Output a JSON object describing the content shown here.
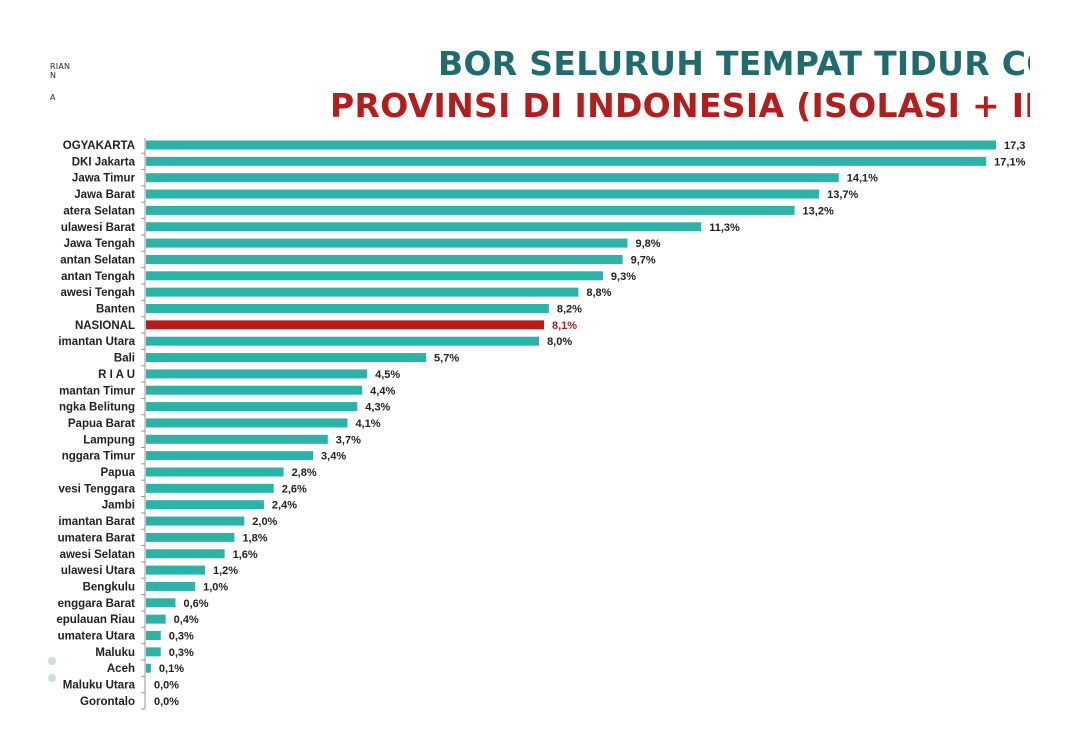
{
  "logo": {
    "line1": "RIAN",
    "line2": "N",
    "line3": "A"
  },
  "header": {
    "title_line1": "BOR SELURUH TEMPAT TIDUR COV",
    "title_line2": "PROVINSI DI INDONESIA (ISOLASI + INT"
  },
  "colors": {
    "bar": "#2bb3a8",
    "highlight_bar": "#b51d1d",
    "title1": "#1f6b6d",
    "title2": "#b51d1d"
  },
  "chart_data": {
    "type": "bar",
    "orientation": "horizontal",
    "categories": [
      "OGYAKARTA",
      "DKI Jakarta",
      "Jawa Timur",
      "Jawa Barat",
      "atera Selatan",
      "ulawesi Barat",
      "Jawa Tengah",
      "antan Selatan",
      "antan Tengah",
      "awesi Tengah",
      "Banten",
      "NASIONAL",
      "imantan Utara",
      "Bali",
      "R I A U",
      "mantan Timur",
      "ngka Belitung",
      "Papua Barat",
      "Lampung",
      "nggara Timur",
      "Papua",
      "vesi Tenggara",
      "Jambi",
      "imantan Barat",
      "umatera Barat",
      "awesi Selatan",
      "ulawesi Utara",
      "Bengkulu",
      "enggara Barat",
      "epulauan Riau",
      "umatera Utara",
      "Maluku",
      "Aceh",
      "Maluku Utara",
      "Gorontalo"
    ],
    "values": [
      17.3,
      17.1,
      14.1,
      13.7,
      13.2,
      11.3,
      9.8,
      9.7,
      9.3,
      8.8,
      8.2,
      8.1,
      8.0,
      5.7,
      4.5,
      4.4,
      4.3,
      4.1,
      3.7,
      3.4,
      2.8,
      2.6,
      2.4,
      2.0,
      1.8,
      1.6,
      1.2,
      1.0,
      0.6,
      0.4,
      0.3,
      0.3,
      0.1,
      0.0,
      0.0
    ],
    "value_labels": [
      "17,3",
      "17,1%",
      "14,1%",
      "13,7%",
      "13,2%",
      "11,3%",
      "9,8%",
      "9,7%",
      "9,3%",
      "8,8%",
      "8,2%",
      "8,1%",
      "8,0%",
      "5,7%",
      "4,5%",
      "4,4%",
      "4,3%",
      "4,1%",
      "3,7%",
      "3,4%",
      "2,8%",
      "2,6%",
      "2,4%",
      "2,0%",
      "1,8%",
      "1,6%",
      "1,2%",
      "1,0%",
      "0,6%",
      "0,4%",
      "0,3%",
      "0,3%",
      "0,1%",
      "0,0%",
      "0,0%"
    ],
    "highlight": "NASIONAL",
    "xlim": [
      0,
      17.3
    ],
    "grid": false,
    "legend": "none"
  }
}
